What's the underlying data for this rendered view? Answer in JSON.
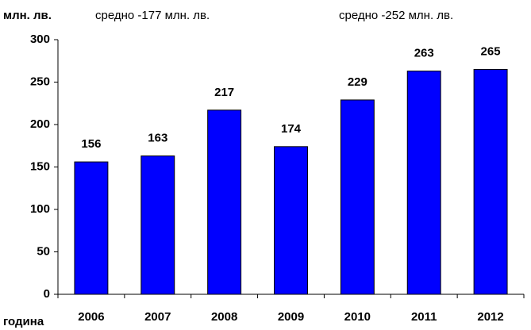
{
  "chart_data": {
    "type": "bar",
    "ylabel": "млн. лв.",
    "xlabel": "година",
    "annotations": [
      "средно -177 млн. лв.",
      "средно -252 млн. лв."
    ],
    "categories": [
      "2006",
      "2007",
      "2008",
      "2009",
      "2010",
      "2011",
      "2012"
    ],
    "values": [
      156,
      163,
      217,
      174,
      229,
      263,
      265
    ],
    "color": "#0000ff",
    "ylim": [
      0,
      300
    ],
    "yticks": [
      0,
      50,
      100,
      150,
      200,
      250,
      300
    ],
    "grid": false
  }
}
